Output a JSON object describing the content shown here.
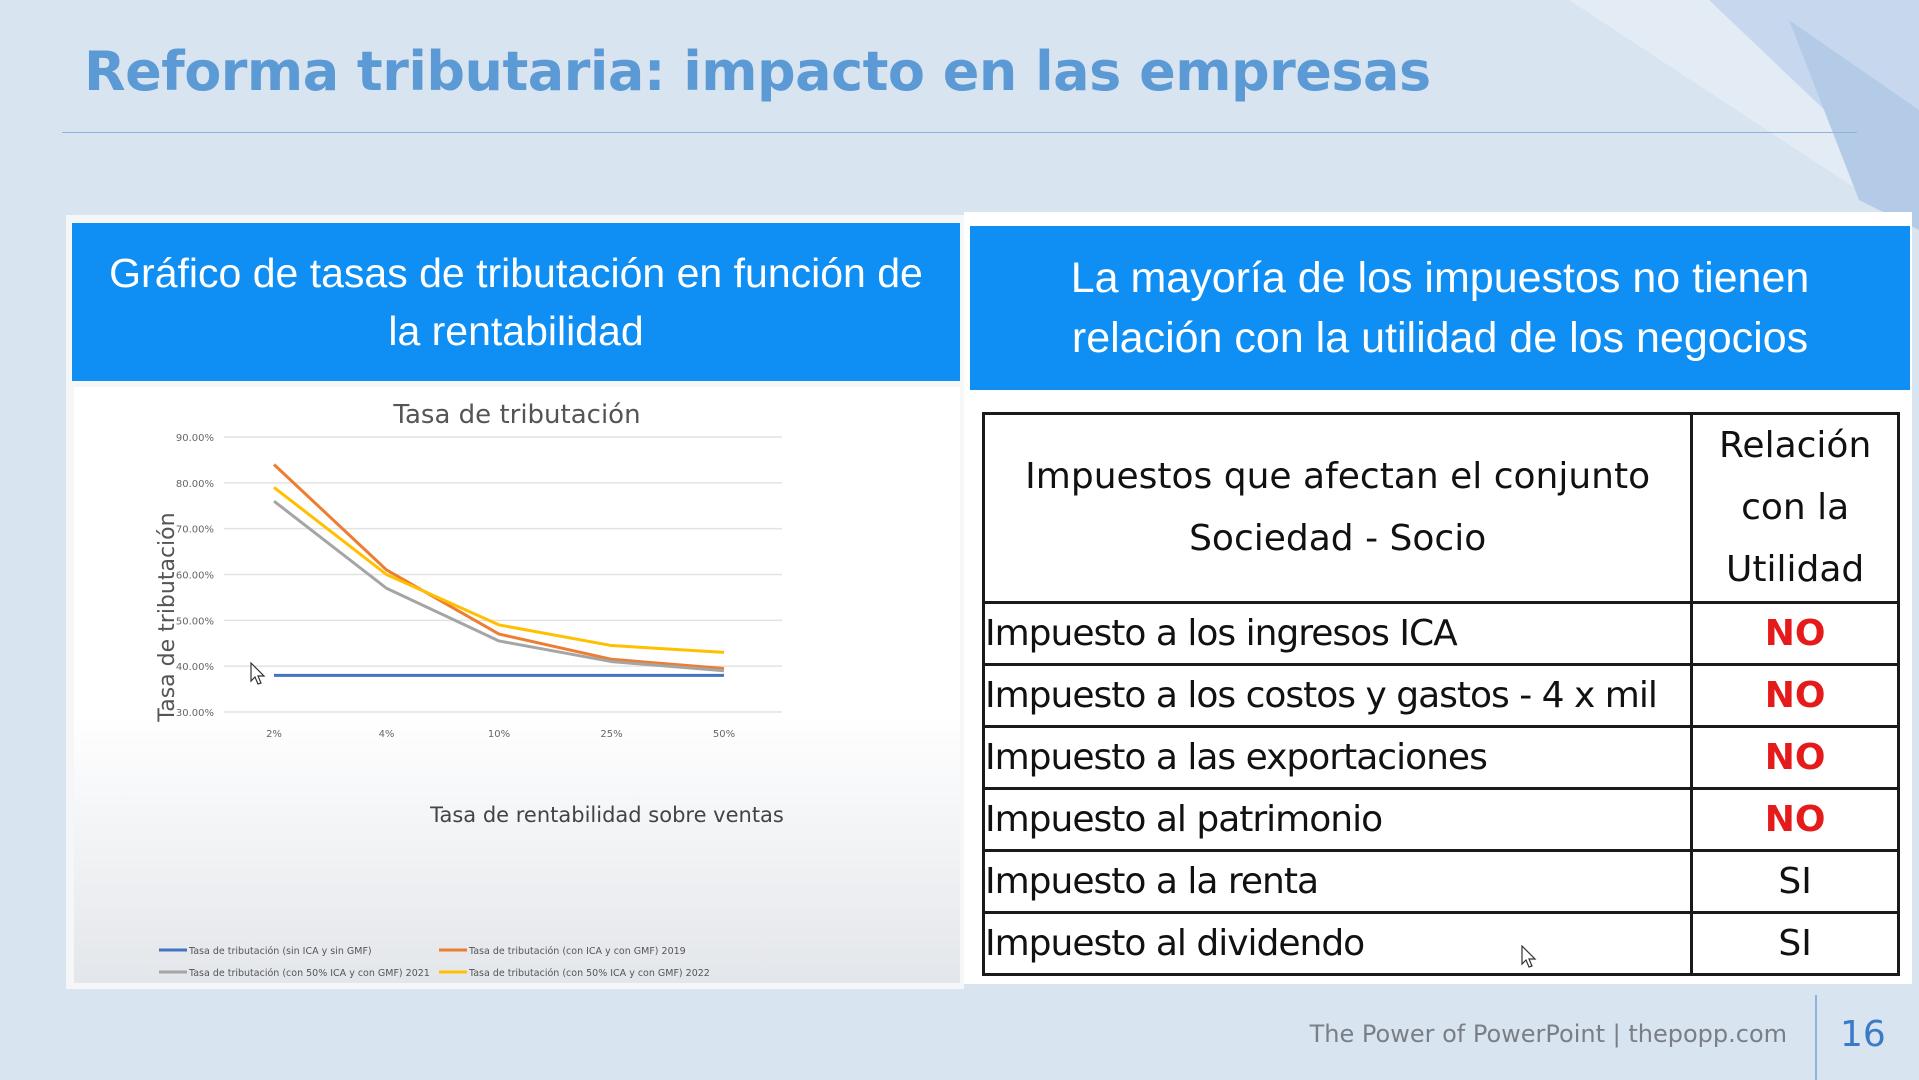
{
  "slide": {
    "title": "Reforma tributaria: impacto en las empresas",
    "footer": "The Power of PowerPoint | thepopp.com",
    "page_number": "16"
  },
  "left_panel": {
    "header": "Gráfico de tasas de tributación en función de la rentabilidad"
  },
  "right_panel": {
    "header": "La mayoría de los impuestos no tienen relación con la utilidad de los negocios",
    "table": {
      "col1_header_line1": "Impuestos que afectan el conjunto",
      "col1_header_line2": "Sociedad - Socio",
      "col2_header_line1": "Relación",
      "col2_header_line2": "con la",
      "col2_header_line3": "Utilidad",
      "rows": [
        {
          "tax": "Impuesto a los ingresos ICA",
          "relation": "NO"
        },
        {
          "tax": "Impuesto a los costos y gastos - 4 x mil",
          "relation": "NO"
        },
        {
          "tax": "Impuesto a las exportaciones",
          "relation": "NO"
        },
        {
          "tax": "Impuesto al patrimonio",
          "relation": "NO"
        },
        {
          "tax": "Impuesto a la renta",
          "relation": "SI"
        },
        {
          "tax": "Impuesto al dividendo",
          "relation": "SI"
        }
      ]
    }
  },
  "colors": {
    "title": "#5b9ad4",
    "header_bg": "#0f8ff3",
    "no": "#e51b1b"
  },
  "chart_data": {
    "type": "line",
    "title": "Tasa de tributación",
    "xlabel": "Tasa de rentabilidad sobre ventas",
    "ylabel": "Tasa de tributación",
    "categories": [
      "2%",
      "4%",
      "10%",
      "25%",
      "50%"
    ],
    "yticks": [
      "30.00%",
      "40.00%",
      "50.00%",
      "60.00%",
      "70.00%",
      "80.00%",
      "90.00%"
    ],
    "ylim": [
      30,
      90
    ],
    "grid": true,
    "legend_position": "bottom",
    "series": [
      {
        "name": "Tasa de tributación (sin ICA y sin GMF)",
        "color": "#4472c4",
        "values": [
          38,
          38,
          38,
          38,
          38
        ]
      },
      {
        "name": "Tasa de tributación (con ICA y con GMF) 2019",
        "color": "#ed7d31",
        "values": [
          84,
          61,
          47,
          41.5,
          39.5
        ]
      },
      {
        "name": "Tasa de tributación (con 50% ICA y con GMF) 2021",
        "color": "#a5a5a5",
        "values": [
          76,
          57,
          45.5,
          41,
          39
        ]
      },
      {
        "name": "Tasa de tributación (con 50% ICA y con GMF) 2022",
        "color": "#ffc000",
        "values": [
          79,
          60,
          49,
          44.5,
          43
        ]
      }
    ]
  }
}
